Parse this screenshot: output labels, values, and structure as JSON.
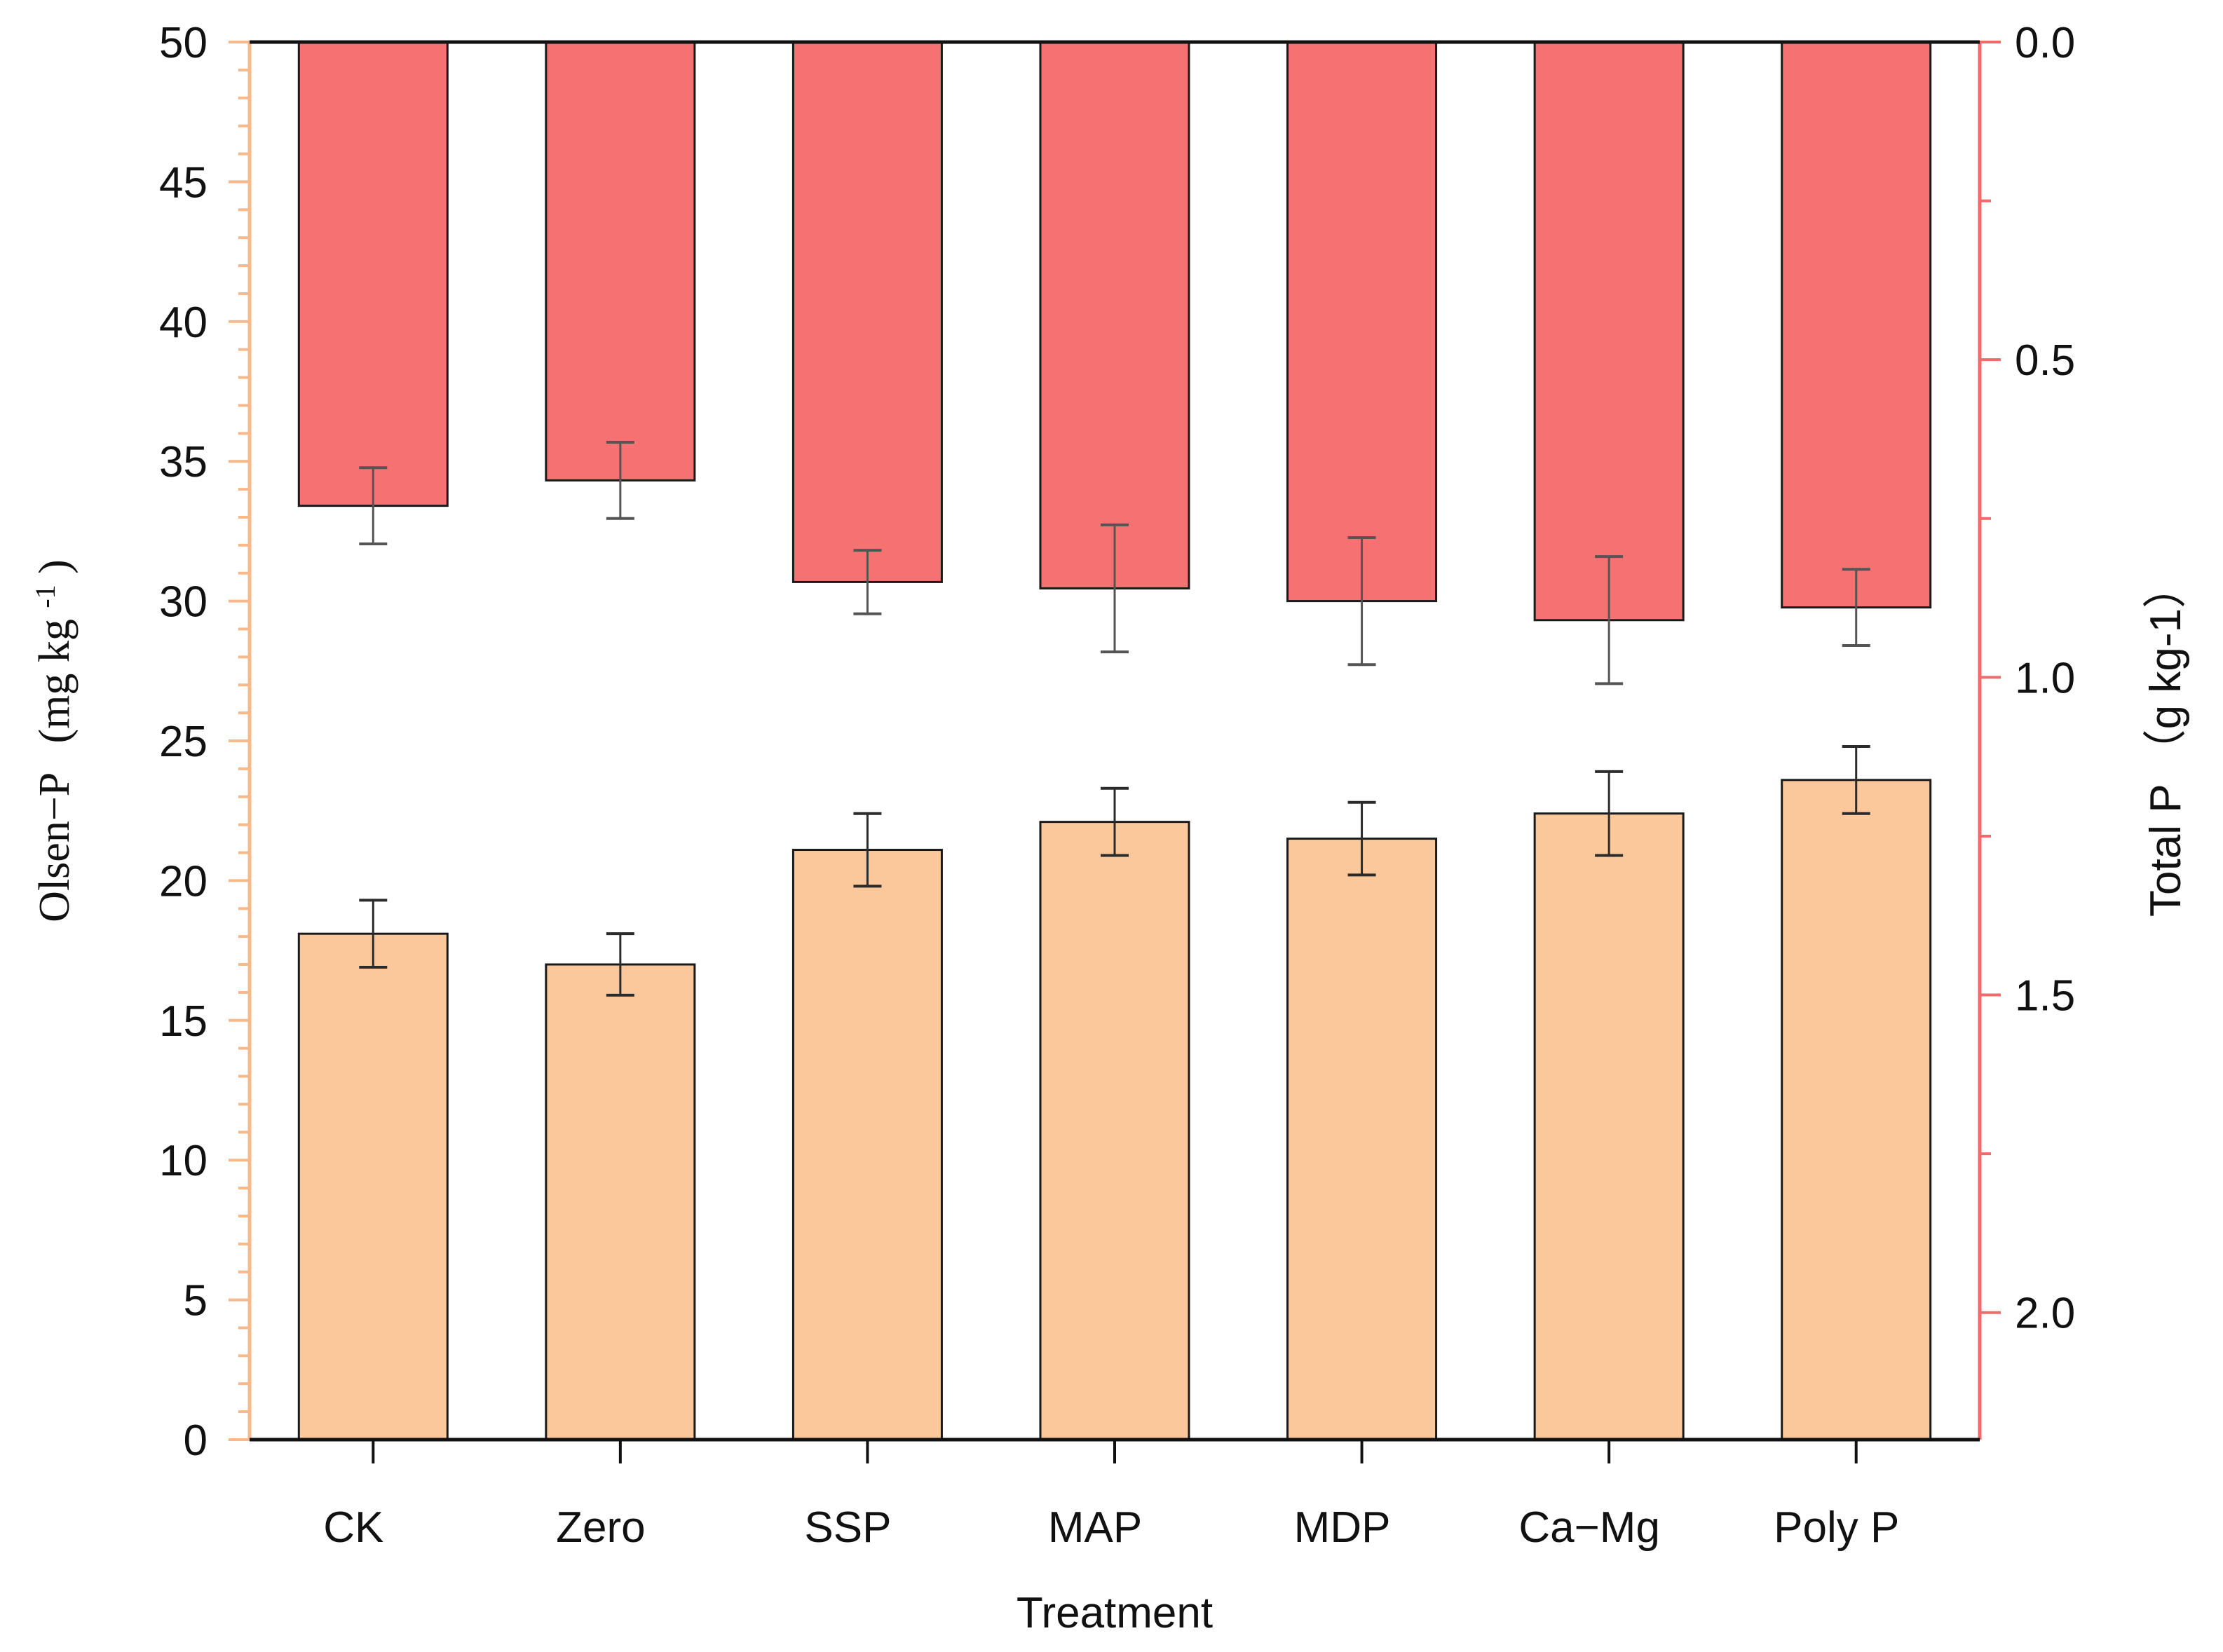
{
  "chart_data": {
    "type": "bar",
    "categories": [
      "CK",
      "Zero",
      "SSP",
      "MAP",
      "MDP",
      "Ca−Mg",
      "Poly P"
    ],
    "xlabel": "Treatment",
    "left_axis": {
      "label_main": "Olsen−P",
      "label_unit": "(mg kg",
      "label_sup": "-1",
      "label_close": ")",
      "ylim": [
        0,
        50
      ],
      "ticks": [
        "0",
        "5",
        "10",
        "15",
        "20",
        "25",
        "30",
        "35",
        "40",
        "45",
        "50"
      ],
      "color": "#f7b98a"
    },
    "right_axis": {
      "label": "Total P （g kg-1）",
      "ylim": [
        0.0,
        2.2
      ],
      "inverted": true,
      "ticks": [
        "0.0",
        "0.5",
        "1.0",
        "1.5",
        "2.0"
      ],
      "color": "#ef6b6b"
    },
    "series": [
      {
        "axis": "left",
        "color": "#fbc89b",
        "values": [
          18.1,
          17.0,
          21.1,
          22.1,
          21.5,
          22.4,
          23.6
        ],
        "errors": [
          1.2,
          1.1,
          1.3,
          1.2,
          1.3,
          1.5,
          1.2
        ]
      },
      {
        "axis": "right",
        "color": "#f67171",
        "values": [
          0.73,
          0.69,
          0.85,
          0.86,
          0.88,
          0.91,
          0.89
        ],
        "errors": [
          0.06,
          0.06,
          0.05,
          0.1,
          0.1,
          0.1,
          0.06
        ]
      }
    ]
  }
}
